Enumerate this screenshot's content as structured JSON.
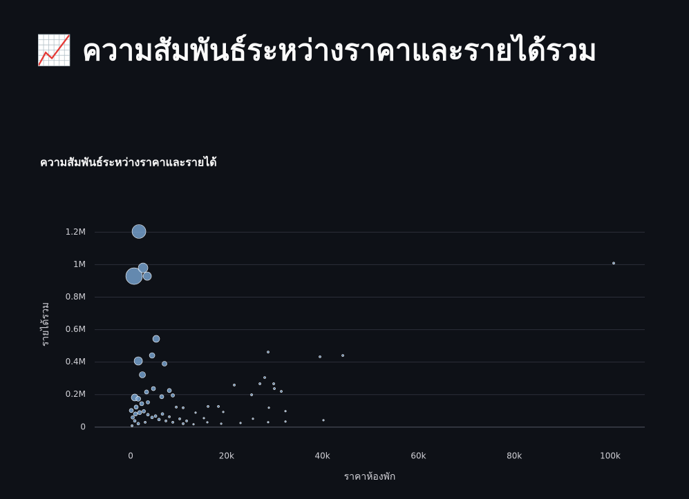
{
  "header": {
    "title": "📈 ความสัมพันธ์ระหว่างราคาและรายได้รวม"
  },
  "chart_data": {
    "type": "scatter",
    "title": "ความสัมพันธ์ระหว่างราคาและรายได้",
    "x_label": "ราคาห้องพัก",
    "y_label": "รายได้รวม",
    "color": "#7aa7d6",
    "grid": true,
    "xlim": [
      -7500,
      107200
    ],
    "ylim": [
      -90000,
      1350000
    ],
    "xticks": [
      0,
      {
        "value": 20000,
        "label": "20k"
      },
      {
        "value": 40000,
        "label": "40k"
      },
      {
        "value": 60000,
        "label": "60k"
      },
      {
        "value": 80000,
        "label": "80k"
      },
      {
        "value": 100000,
        "label": "100k"
      }
    ],
    "yticks": [
      0,
      {
        "value": 200000,
        "label": "0.2M"
      },
      {
        "value": 400000,
        "label": "0.4M"
      },
      {
        "value": 600000,
        "label": "0.6M"
      },
      {
        "value": 800000,
        "label": "0.8M"
      },
      {
        "value": 1000000,
        "label": "1M"
      },
      {
        "value": 1200000,
        "label": "1.2M"
      }
    ],
    "x": [
      1730,
      720,
      2590,
      3460,
      5330,
      1590,
      4470,
      7060,
      2450,
      860,
      8070,
      6480,
      3310,
      4750,
      1590,
      8790,
      100720,
      28670,
      39480,
      44240,
      21610,
      27950,
      26950,
      29830,
      29970,
      31410,
      25220,
      32280,
      28820,
      40200,
      25500,
      16140,
      18300,
      19310,
      9510,
      10950,
      13540,
      15270,
      22910,
      32280,
      28670,
      430,
      1010,
      1870,
      2740,
      3600,
      4470,
      5910,
      7350,
      8790,
      10950,
      13110,
      860,
      1590,
      3030,
      5190,
      6630,
      8070,
      140,
      1150,
      2310,
      3600,
      290,
      10230,
      11670,
      15990,
      18880
    ],
    "values": [
      1204000,
      929000,
      980000,
      929000,
      543000,
      407000,
      441000,
      390000,
      322000,
      182000,
      225000,
      187000,
      216000,
      237000,
      174000,
      195000,
      1009000,
      462000,
      433000,
      441000,
      259000,
      305000,
      267000,
      267000,
      237000,
      220000,
      199000,
      98000,
      119000,
      42000,
      51000,
      127000,
      127000,
      93000,
      123000,
      119000,
      89000,
      55000,
      25000,
      34000,
      30000,
      59400,
      80600,
      89100,
      97500,
      76300,
      59400,
      46600,
      38200,
      29700,
      21200,
      17000,
      38200,
      21200,
      29700,
      67900,
      80600,
      63600,
      101800,
      123000,
      144200,
      152700,
      8500,
      50900,
      38200,
      29700,
      21200
    ],
    "sizes": [
      10,
      12,
      7,
      6,
      5,
      6,
      4,
      3.5,
      4.5,
      5,
      3,
      3,
      3,
      3,
      3.5,
      2.5,
      1.5,
      1.5,
      1.5,
      1.5,
      1.5,
      1.5,
      1.5,
      1.5,
      1.5,
      1.5,
      1.5,
      1.2,
      1.2,
      1.2,
      1.2,
      1.5,
      1.5,
      1.2,
      1.5,
      1.5,
      1.2,
      1.2,
      1.2,
      1.2,
      1.2,
      2.5,
      3,
      3,
      2.5,
      2,
      2,
      2,
      1.5,
      1.5,
      1.5,
      1.2,
      2,
      2,
      1.5,
      2,
      2,
      1.5,
      3,
      3,
      3,
      2.5,
      1.5,
      1.5,
      1.5,
      1.2,
      1.2
    ]
  }
}
